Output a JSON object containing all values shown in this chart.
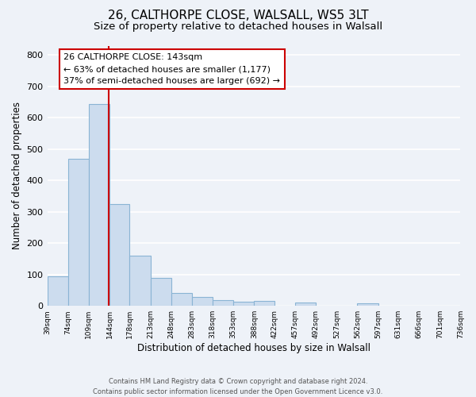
{
  "title": "26, CALTHORPE CLOSE, WALSALL, WS5 3LT",
  "subtitle": "Size of property relative to detached houses in Walsall",
  "xlabel": "Distribution of detached houses by size in Walsall",
  "ylabel": "Number of detached properties",
  "bar_edges": [
    39,
    74,
    109,
    144,
    178,
    213,
    248,
    283,
    318,
    353,
    388,
    422,
    457,
    492,
    527,
    562,
    597,
    631,
    666,
    701,
    736
  ],
  "bar_heights": [
    95,
    470,
    645,
    325,
    160,
    90,
    42,
    28,
    17,
    12,
    15,
    0,
    10,
    0,
    0,
    8,
    0,
    0,
    0,
    0
  ],
  "bar_color": "#ccdcee",
  "bar_edge_color": "#8ab4d4",
  "vline_x": 143,
  "vline_color": "#cc0000",
  "ylim": [
    0,
    830
  ],
  "yticks": [
    0,
    100,
    200,
    300,
    400,
    500,
    600,
    700,
    800
  ],
  "tick_labels": [
    "39sqm",
    "74sqm",
    "109sqm",
    "144sqm",
    "178sqm",
    "213sqm",
    "248sqm",
    "283sqm",
    "318sqm",
    "353sqm",
    "388sqm",
    "422sqm",
    "457sqm",
    "492sqm",
    "527sqm",
    "562sqm",
    "597sqm",
    "631sqm",
    "666sqm",
    "701sqm",
    "736sqm"
  ],
  "annotation_title": "26 CALTHORPE CLOSE: 143sqm",
  "annotation_line1": "← 63% of detached houses are smaller (1,177)",
  "annotation_line2": "37% of semi-detached houses are larger (692) →",
  "annotation_box_color": "#ffffff",
  "annotation_box_edge_color": "#cc0000",
  "footer1": "Contains HM Land Registry data © Crown copyright and database right 2024.",
  "footer2": "Contains public sector information licensed under the Open Government Licence v3.0.",
  "background_color": "#eef2f8",
  "plot_background_color": "#eef2f8",
  "grid_color": "#ffffff",
  "title_fontsize": 11,
  "subtitle_fontsize": 9.5
}
